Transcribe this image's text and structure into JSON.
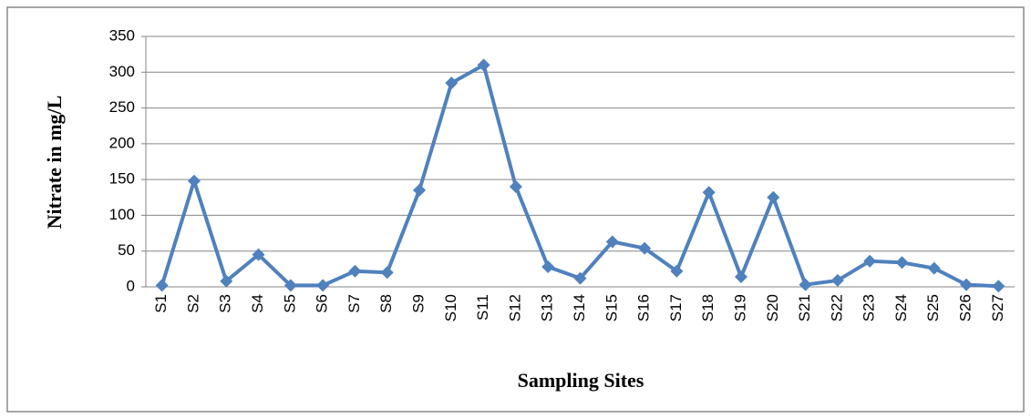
{
  "chart_data": {
    "type": "line",
    "x_label": "Sampling Sites",
    "y_label": "Nitrate in mg/L",
    "categories": [
      "S1",
      "S2",
      "S3",
      "S4",
      "S5",
      "S6",
      "S7",
      "S8",
      "S9",
      "S10",
      "S11",
      "S12",
      "S13",
      "S14",
      "S15",
      "S16",
      "S17",
      "S18",
      "S19",
      "S20",
      "S21",
      "S22",
      "S23",
      "S24",
      "S25",
      "S26",
      "S27"
    ],
    "series": [
      {
        "color": "#4f81bd",
        "values": [
          2,
          148,
          8,
          45,
          2,
          2,
          22,
          20,
          135,
          285,
          310,
          140,
          28,
          12,
          63,
          54,
          22,
          132,
          14,
          125,
          3,
          9,
          36,
          34,
          26,
          3,
          1
        ]
      }
    ],
    "ylim": [
      0,
      350
    ],
    "yticks": [
      0,
      50,
      100,
      150,
      200,
      250,
      300,
      350
    ],
    "grid": true
  }
}
